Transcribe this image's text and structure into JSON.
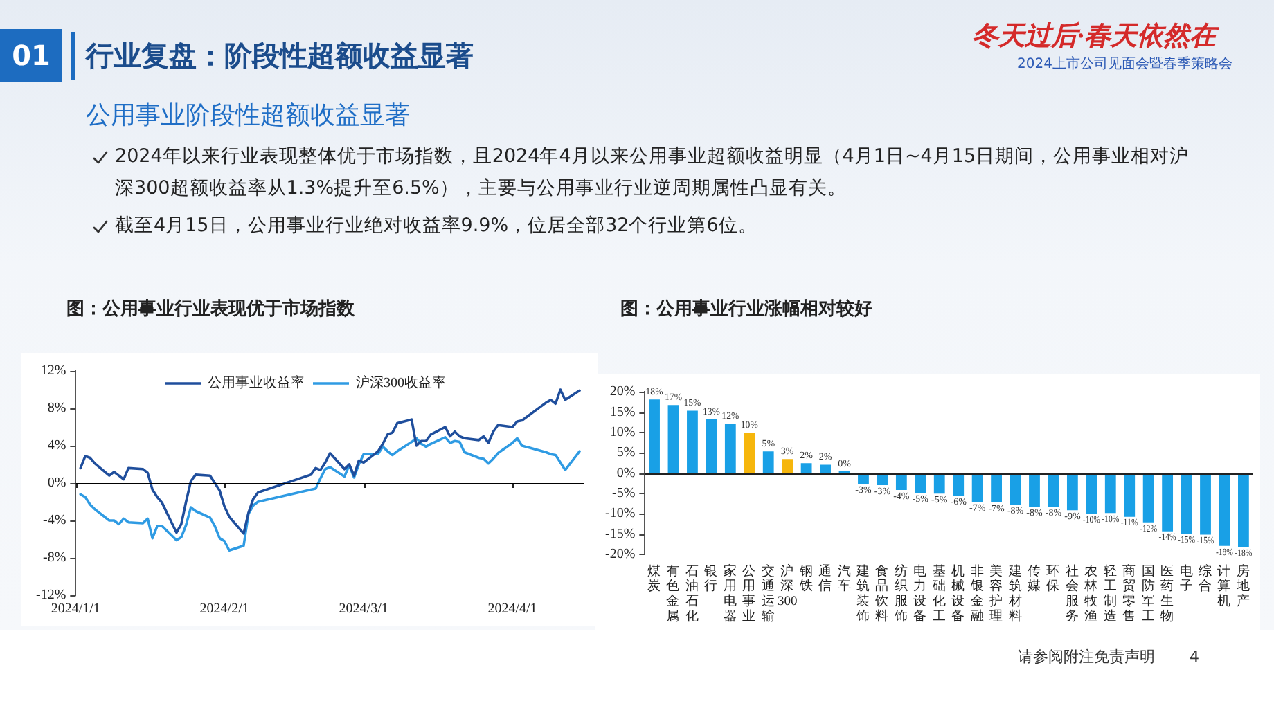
{
  "chart_data": [
    {
      "type": "other",
      "title": "行业复盘：阶段性超额收益显著",
      "subtitle": "公用事业阶段性超额收益显著",
      "annotations": [
        "01",
        "2024年以来行业表现整体优于市场指数，且2024年4月以来公用事业超额收益明显（4月1日~4月15日期间，公用事业相对沪深300超额收益率从1.3%提升至6.5%），主要与公用事业行业逆周期属性凸显有关。",
        "截至4月15日，公用事业行业绝对收益率9.9%，位居全部32个行业第6位。",
        "冬天过后·春天依然在",
        "2024上市公司见面会暨春季策略会",
        "请参阅附注免责声明",
        "4"
      ]
    },
    {
      "type": "line",
      "title": "图：公用事业行业表现优于市场指数",
      "x": [
        "2024-01-02",
        "2024-01-03",
        "2024-01-04",
        "2024-01-05",
        "2024-01-08",
        "2024-01-09",
        "2024-01-10",
        "2024-01-11",
        "2024-01-12",
        "2024-01-15",
        "2024-01-16",
        "2024-01-17",
        "2024-01-18",
        "2024-01-19",
        "2024-01-22",
        "2024-01-23",
        "2024-01-24",
        "2024-01-25",
        "2024-01-26",
        "2024-01-29",
        "2024-01-30",
        "2024-01-31",
        "2024-02-01",
        "2024-02-02",
        "2024-02-05",
        "2024-02-06",
        "2024-02-07",
        "2024-02-08",
        "2024-02-19",
        "2024-02-20",
        "2024-02-21",
        "2024-02-22",
        "2024-02-23",
        "2024-02-26",
        "2024-02-27",
        "2024-02-28",
        "2024-02-29",
        "2024-03-01",
        "2024-03-04",
        "2024-03-05",
        "2024-03-06",
        "2024-03-07",
        "2024-03-08",
        "2024-03-11",
        "2024-03-12",
        "2024-03-13",
        "2024-03-14",
        "2024-03-15",
        "2024-03-18",
        "2024-03-19",
        "2024-03-20",
        "2024-03-21",
        "2024-03-22",
        "2024-03-25",
        "2024-03-26",
        "2024-03-27",
        "2024-03-28",
        "2024-03-29",
        "2024-04-01",
        "2024-04-02",
        "2024-04-03",
        "2024-04-08",
        "2024-04-09",
        "2024-04-10",
        "2024-04-11",
        "2024-04-12",
        "2024-04-15"
      ],
      "xlim": [
        "2024-01-01",
        "2024-04-16"
      ],
      "xticks": [
        {
          "value": "2024-01-01",
          "label": "2024/1/1"
        },
        {
          "value": "2024-02-01",
          "label": "2024/2/1"
        },
        {
          "value": "2024-03-01",
          "label": "2024/3/1"
        },
        {
          "value": "2024-04-01",
          "label": "2024/4/1"
        }
      ],
      "ylim": [
        -12,
        12
      ],
      "yticks": [
        {
          "value": -12,
          "label": "-12%"
        },
        {
          "value": -8,
          "label": "-8%"
        },
        {
          "value": -4,
          "label": "-4%"
        },
        {
          "value": 0,
          "label": "0%"
        },
        {
          "value": 4,
          "label": "4%"
        },
        {
          "value": 8,
          "label": "8%"
        },
        {
          "value": 12,
          "label": "12%"
        }
      ],
      "grid": false,
      "legend": "top",
      "ref_lines": [
        {
          "axis": "y",
          "value": 0,
          "color": "#000000"
        }
      ],
      "series": [
        {
          "name": "公用事业收益率",
          "color": "#1f4e9c",
          "values": [
            1.6,
            2.9,
            2.7,
            2.1,
            0.8,
            1.2,
            0.8,
            0.4,
            1.6,
            1.5,
            1.1,
            -0.7,
            -1.5,
            -2.1,
            -5.3,
            -4.4,
            -2.0,
            0.2,
            0.9,
            0.8,
            0.0,
            -0.8,
            -2.5,
            -3.6,
            -5.4,
            -3.2,
            -1.7,
            -1.0,
            0.9,
            1.6,
            1.4,
            2.2,
            3.2,
            1.5,
            2.0,
            0.8,
            2.4,
            2.2,
            3.4,
            4.2,
            5.2,
            5.4,
            6.4,
            6.8,
            4.0,
            4.5,
            4.5,
            5.2,
            6.0,
            5.0,
            5.5,
            5.0,
            4.8,
            4.6,
            5.0,
            4.3,
            5.5,
            6.2,
            6.0,
            6.6,
            6.7,
            8.6,
            8.9,
            8.5,
            10.0,
            8.9,
            9.9
          ]
        },
        {
          "name": "沪深300收益率",
          "color": "#2f9be3",
          "values": [
            -1.2,
            -1.5,
            -2.3,
            -2.8,
            -4.0,
            -4.0,
            -4.4,
            -3.8,
            -4.2,
            -4.3,
            -3.8,
            -5.9,
            -4.6,
            -4.6,
            -6.1,
            -5.8,
            -4.5,
            -2.6,
            -3.0,
            -3.7,
            -4.6,
            -5.9,
            -6.2,
            -7.2,
            -6.7,
            -3.3,
            -2.4,
            -2.0,
            -0.7,
            -0.6,
            0.5,
            1.5,
            1.7,
            0.7,
            1.9,
            0.6,
            2.0,
            3.1,
            3.1,
            3.9,
            3.4,
            3.0,
            3.4,
            4.4,
            4.8,
            4.2,
            3.9,
            4.2,
            4.9,
            4.3,
            4.5,
            4.4,
            3.3,
            2.7,
            2.6,
            2.1,
            2.6,
            3.2,
            4.3,
            4.8,
            4.0,
            3.3,
            3.1,
            3.0,
            2.2,
            1.4,
            3.4
          ]
        }
      ]
    },
    {
      "type": "bar",
      "title": "图：公用事业行业涨幅相对较好",
      "categories": [
        "煤炭",
        "有色金属",
        "石油石化",
        "银行",
        "家用电器",
        "公用事业",
        "交通运输",
        "沪深300",
        "钢铁",
        "通信",
        "汽车",
        "建筑装饰",
        "食品饮料",
        "纺织服饰",
        "电力设备",
        "基础化工",
        "机械设备",
        "非银金融",
        "美容护理",
        "建筑材料",
        "传媒",
        "环保",
        "社会服务",
        "农林牧渔",
        "轻工制造",
        "商贸零售",
        "国防军工",
        "医药生物",
        "电子",
        "综合",
        "计算机",
        "房地产"
      ],
      "values": [
        18.1,
        16.7,
        15.3,
        13.2,
        12.1,
        9.9,
        5.3,
        3.4,
        2.4,
        2.0,
        0.4,
        -2.8,
        -3.0,
        -4.2,
        -4.9,
        -5.1,
        -5.6,
        -7.1,
        -7.3,
        -7.9,
        -8.3,
        -8.4,
        -9.2,
        -10.1,
        -9.9,
        -10.8,
        -12.2,
        -14.4,
        -15.0,
        -15.2,
        -18.0,
        -18.2
      ],
      "value_labels": [
        "18%",
        "17%",
        "15%",
        "13%",
        "12%",
        "10%",
        "5%",
        "3%",
        "2%",
        "2%",
        "0%",
        "-3%",
        "-3%",
        "-4%",
        "-5%",
        "-5%",
        "-6%",
        "-7%",
        "-7%",
        "-8%",
        "-8%",
        "-8%",
        "-9%",
        "-10%",
        "-10%",
        "-11%",
        "-12%",
        "-14%",
        "-15%",
        "-15%",
        "-18%",
        "-18%"
      ],
      "colors": [
        "#19a0e6",
        "#19a0e6",
        "#19a0e6",
        "#19a0e6",
        "#19a0e6",
        "#f6b60c",
        "#19a0e6",
        "#f6b60c",
        "#19a0e6",
        "#19a0e6",
        "#19a0e6",
        "#19a0e6",
        "#19a0e6",
        "#19a0e6",
        "#19a0e6",
        "#19a0e6",
        "#19a0e6",
        "#19a0e6",
        "#19a0e6",
        "#19a0e6",
        "#19a0e6",
        "#19a0e6",
        "#19a0e6",
        "#19a0e6",
        "#19a0e6",
        "#19a0e6",
        "#19a0e6",
        "#19a0e6",
        "#19a0e6",
        "#19a0e6",
        "#19a0e6",
        "#19a0e6"
      ],
      "ylim": [
        -20,
        20
      ],
      "yticks": [
        {
          "value": -20,
          "label": "-20%"
        },
        {
          "value": -15,
          "label": "-15%"
        },
        {
          "value": -10,
          "label": "-10%"
        },
        {
          "value": -5,
          "label": "-5%"
        },
        {
          "value": 0,
          "label": "0%"
        },
        {
          "value": 5,
          "label": "5%"
        },
        {
          "value": 10,
          "label": "10%"
        },
        {
          "value": 15,
          "label": "15%"
        },
        {
          "value": 20,
          "label": "20%"
        }
      ],
      "ref_lines": [
        {
          "axis": "y",
          "value": 0,
          "color": "#222222"
        }
      ],
      "grid": false,
      "legend": false
    }
  ]
}
